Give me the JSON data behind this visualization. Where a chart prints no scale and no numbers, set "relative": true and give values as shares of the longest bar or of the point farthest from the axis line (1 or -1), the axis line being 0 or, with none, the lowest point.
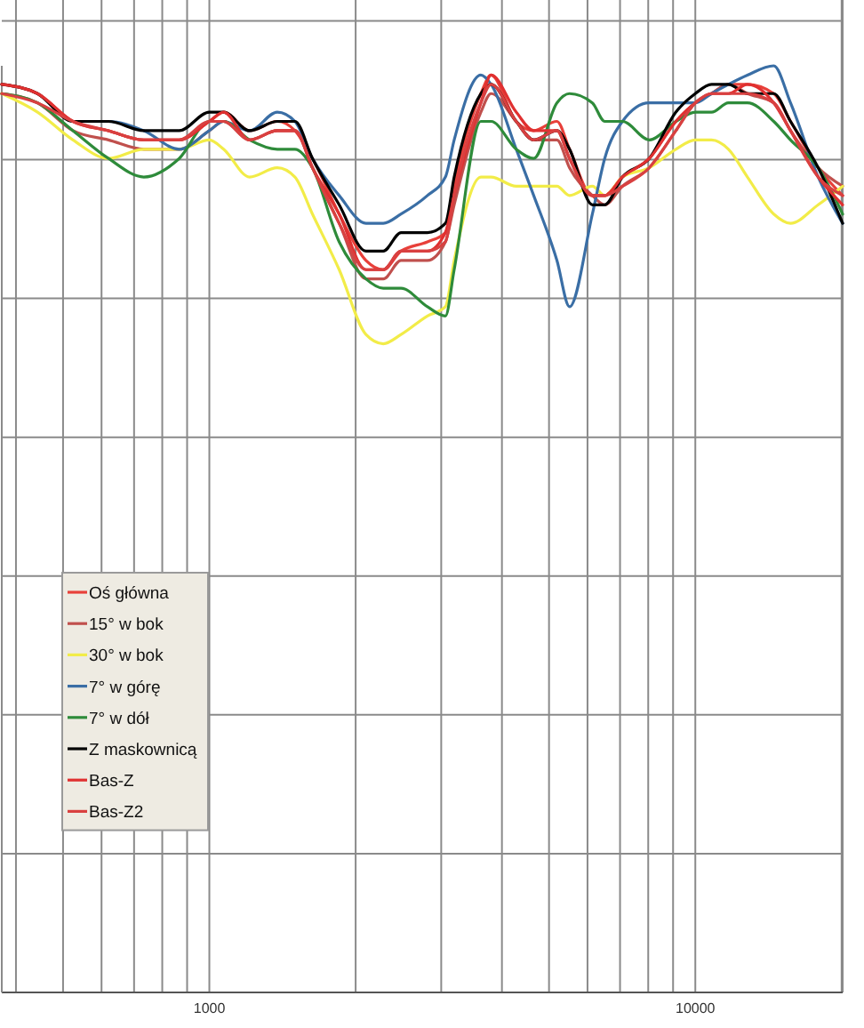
{
  "chart_data": {
    "type": "line",
    "relative": true,
    "log": "x",
    "grid": true,
    "legend": "left",
    "line_style": "solid",
    "xlim": [
      374,
      20100
    ],
    "xticks": [
      {
        "value": 400,
        "label": null
      },
      {
        "value": 500,
        "label": null
      },
      {
        "value": 600,
        "label": null
      },
      {
        "value": 700,
        "label": null
      },
      {
        "value": 800,
        "label": null
      },
      {
        "value": 900,
        "label": null
      },
      1000,
      {
        "value": 2000,
        "label": null
      },
      {
        "value": 3000,
        "label": null
      },
      {
        "value": 4000,
        "label": null
      },
      {
        "value": 5000,
        "label": null
      },
      {
        "value": 6000,
        "label": null
      },
      {
        "value": 7000,
        "label": null
      },
      {
        "value": 8000,
        "label": null
      },
      {
        "value": 9000,
        "label": null
      },
      10000,
      {
        "value": 20000,
        "label": null
      }
    ],
    "x": [
      374,
      443,
      524,
      620,
      733,
      867,
      1000,
      1070,
      1210,
      1380,
      1500,
      1630,
      1850,
      2100,
      2280,
      2480,
      2810,
      3060,
      3190,
      3620,
      3800,
      4280,
      4650,
      5190,
      5510,
      6140,
      6510,
      7080,
      8040,
      9120,
      10000,
      10800,
      11700,
      12800,
      14500,
      15700,
      17900,
      20100
    ],
    "series": [
      {
        "name": "Oś główna",
        "color": "#e8403a",
        "values": [
          0.98,
          0.97,
          0.94,
          0.93,
          0.92,
          0.92,
          0.94,
          0.95,
          0.93,
          0.94,
          0.93,
          0.9,
          0.84,
          0.79,
          0.78,
          0.8,
          0.81,
          0.82,
          0.87,
          0.97,
          0.99,
          0.94,
          0.93,
          0.94,
          0.91,
          0.86,
          0.86,
          0.88,
          0.9,
          0.94,
          0.96,
          0.97,
          0.98,
          0.98,
          0.97,
          0.94,
          0.89,
          0.86
        ]
      },
      {
        "name": "15° w bok",
        "color": "#c0504d",
        "values": [
          0.97,
          0.96,
          0.93,
          0.92,
          0.91,
          0.91,
          0.93,
          0.94,
          0.92,
          0.93,
          0.93,
          0.89,
          0.83,
          0.77,
          0.77,
          0.79,
          0.79,
          0.81,
          0.85,
          0.95,
          0.97,
          0.94,
          0.92,
          0.92,
          0.89,
          0.86,
          0.85,
          0.87,
          0.89,
          0.93,
          0.96,
          0.97,
          0.98,
          0.97,
          0.96,
          0.93,
          0.89,
          0.87
        ]
      },
      {
        "name": "30° w bok",
        "color": "#f2ec48",
        "values": [
          0.97,
          0.95,
          0.92,
          0.9,
          0.91,
          0.91,
          0.92,
          0.91,
          0.88,
          0.89,
          0.88,
          0.84,
          0.78,
          0.71,
          0.7,
          0.71,
          0.73,
          0.74,
          0.79,
          0.88,
          0.88,
          0.87,
          0.87,
          0.87,
          0.86,
          0.87,
          0.86,
          0.88,
          0.89,
          0.91,
          0.92,
          0.92,
          0.91,
          0.88,
          0.84,
          0.83,
          0.85,
          0.87
        ]
      },
      {
        "name": "7° w górę",
        "color": "#3a6ea5",
        "values": [
          null,
          null,
          0.94,
          0.94,
          0.93,
          0.91,
          0.93,
          0.94,
          0.93,
          0.95,
          0.94,
          0.9,
          0.86,
          0.83,
          0.83,
          0.84,
          0.86,
          0.88,
          0.92,
          0.99,
          0.98,
          0.91,
          0.86,
          0.79,
          0.74,
          0.84,
          0.9,
          0.94,
          0.96,
          0.96,
          0.96,
          0.97,
          0.98,
          0.99,
          1,
          0.96,
          0.88,
          0.83
        ]
      },
      {
        "name": "7° w dół",
        "color": "#2e8b3a",
        "values": [
          0.97,
          0.96,
          0.93,
          0.9,
          0.88,
          0.9,
          0.94,
          0.94,
          0.92,
          0.91,
          0.91,
          0.89,
          0.81,
          0.77,
          0.76,
          0.76,
          0.74,
          0.73,
          0.78,
          0.94,
          0.94,
          0.91,
          0.9,
          0.96,
          0.97,
          0.96,
          0.94,
          0.94,
          0.92,
          0.94,
          0.95,
          0.95,
          0.96,
          0.96,
          0.94,
          0.92,
          0.89,
          0.84
        ]
      },
      {
        "name": "Z maskownicą",
        "color": "#000000",
        "values": [
          0.98,
          0.97,
          0.94,
          0.94,
          0.93,
          0.93,
          0.95,
          0.95,
          0.93,
          0.94,
          0.94,
          0.9,
          0.85,
          0.8,
          0.8,
          0.82,
          0.82,
          0.83,
          0.88,
          0.97,
          0.98,
          0.94,
          0.92,
          0.93,
          0.91,
          0.85,
          0.85,
          0.88,
          0.9,
          0.95,
          0.97,
          0.98,
          0.98,
          0.97,
          0.97,
          0.94,
          0.89,
          0.83
        ]
      },
      {
        "name": "Bas-Z",
        "color": "#e03030",
        "values": [
          0.98,
          0.97,
          0.94,
          0.93,
          0.92,
          0.92,
          0.94,
          0.95,
          0.92,
          0.93,
          0.93,
          0.89,
          0.84,
          0.78,
          0.78,
          0.8,
          0.8,
          0.82,
          0.86,
          0.96,
          0.99,
          0.95,
          0.93,
          0.93,
          0.9,
          0.86,
          0.86,
          0.88,
          0.9,
          0.94,
          0.96,
          0.97,
          0.97,
          0.98,
          0.96,
          0.93,
          0.88,
          0.85
        ]
      },
      {
        "name": "Bas-Z2",
        "color": "#d94040",
        "values": [
          0.97,
          0.96,
          0.94,
          0.93,
          0.92,
          0.92,
          0.94,
          0.94,
          0.92,
          0.93,
          0.93,
          0.89,
          0.83,
          0.78,
          0.78,
          0.8,
          0.8,
          0.81,
          0.86,
          0.96,
          0.98,
          0.94,
          0.92,
          0.93,
          0.9,
          0.86,
          0.86,
          0.87,
          0.89,
          0.93,
          0.96,
          0.97,
          0.97,
          0.97,
          0.96,
          0.93,
          0.88,
          0.86
        ]
      }
    ]
  }
}
